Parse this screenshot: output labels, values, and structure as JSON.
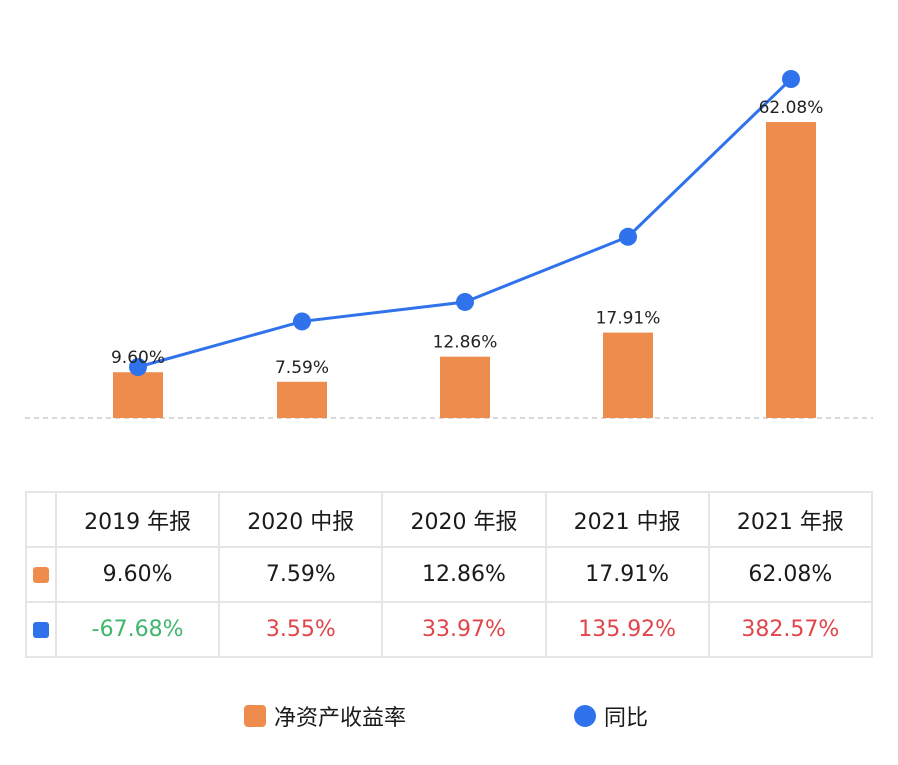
{
  "chart_data": {
    "type": "bar+line",
    "categories": [
      "2019 年报",
      "2020 中报",
      "2020 年报",
      "2021 中报",
      "2021 年报"
    ],
    "series": [
      {
        "name": "净资产收益率",
        "kind": "bar",
        "values": [
          9.6,
          7.59,
          12.86,
          17.91,
          62.08
        ],
        "labels": [
          "9.60%",
          "7.59%",
          "12.86%",
          "17.91%",
          "62.08%"
        ],
        "color": "#EE8C4E"
      },
      {
        "name": "同比",
        "kind": "line",
        "values": [
          -67.68,
          3.55,
          33.97,
          135.92,
          382.57
        ],
        "labels": [
          "-67.68%",
          "3.55%",
          "33.97%",
          "135.92%",
          "382.57%"
        ],
        "color": "#2F72EB"
      }
    ],
    "grid": false
  },
  "colors": {
    "positive": "#E0454B",
    "negative": "#3FB56D",
    "baseline": "#cccccc"
  }
}
